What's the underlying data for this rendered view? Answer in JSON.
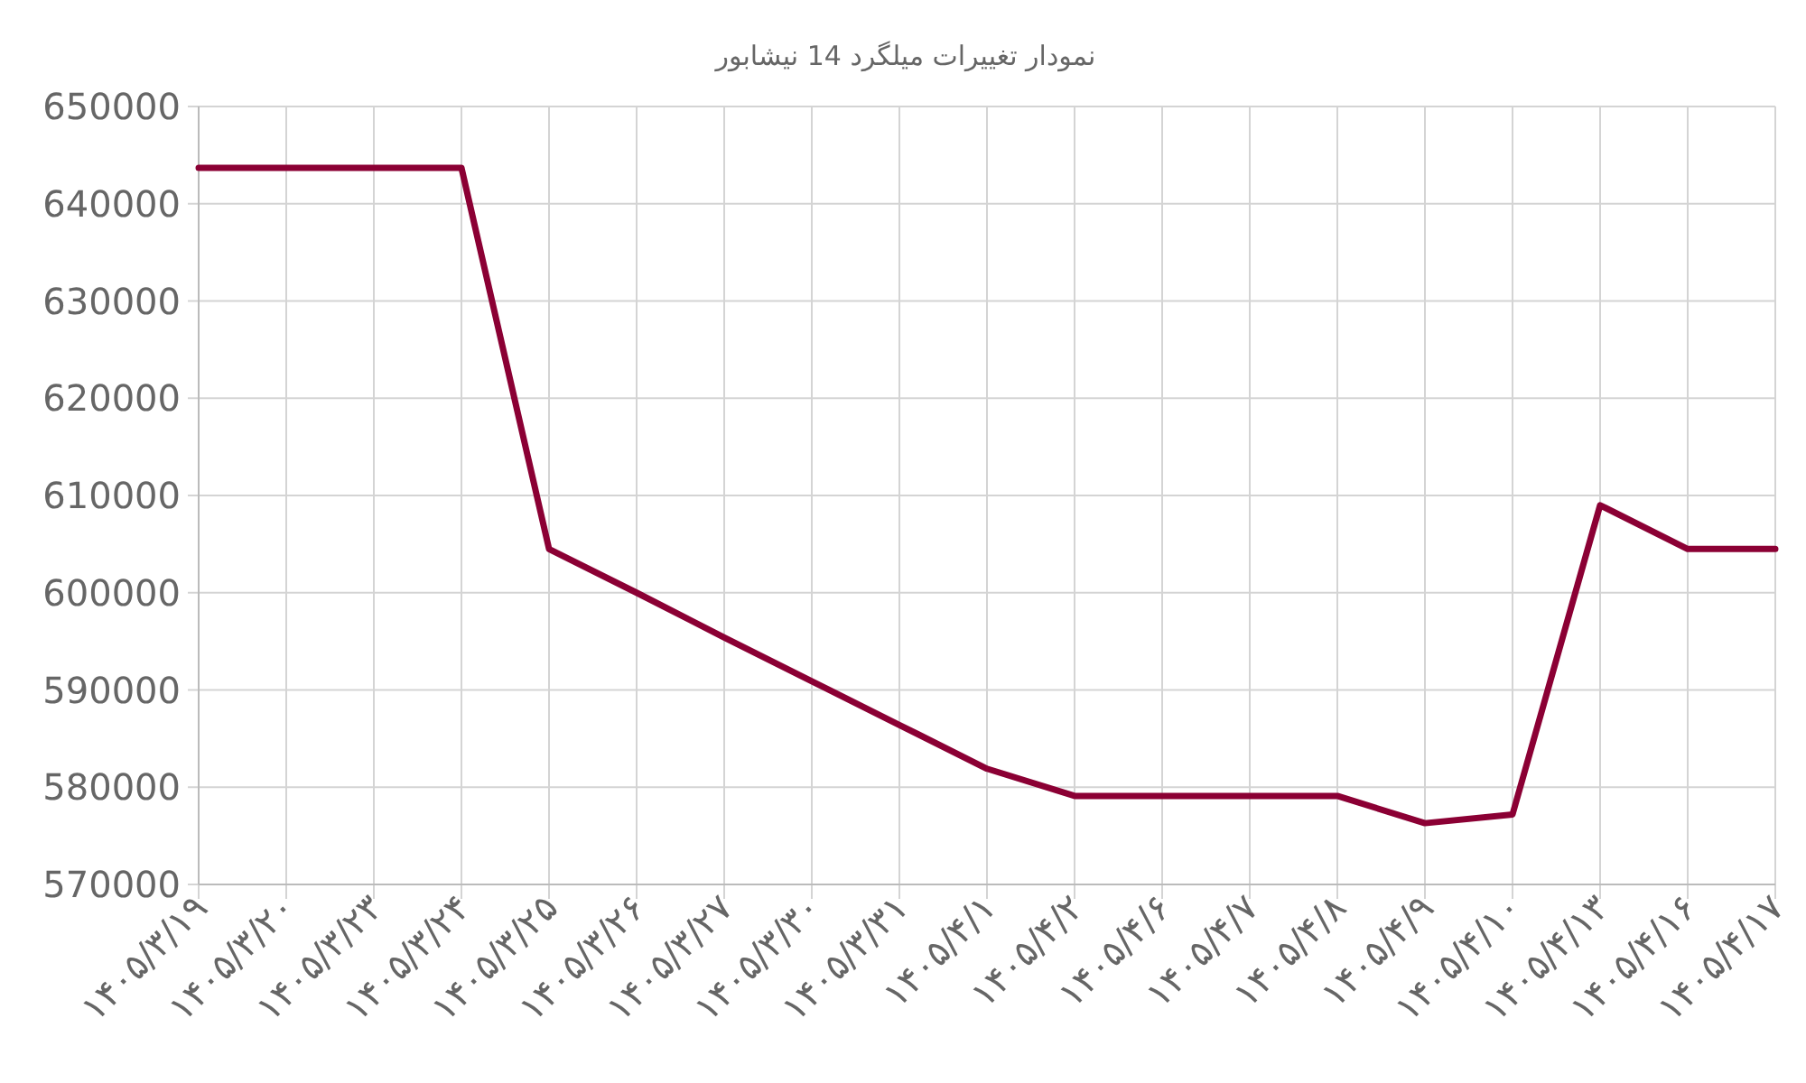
{
  "chart_data": {
    "type": "line",
    "title": "نمودار تغییرات میلگرد 14 نیشابور",
    "categories": [
      "۱۴۰۵/۳/۱۹",
      "۱۴۰۵/۳/۲۰",
      "۱۴۰۵/۳/۲۳",
      "۱۴۰۵/۳/۲۴",
      "۱۴۰۵/۳/۲۵",
      "۱۴۰۵/۳/۲۶",
      "۱۴۰۵/۳/۲۷",
      "۱۴۰۵/۳/۳۰",
      "۱۴۰۵/۳/۳۱",
      "۱۴۰۵/۴/۱",
      "۱۴۰۵/۴/۲",
      "۱۴۰۵/۴/۶",
      "۱۴۰۵/۴/۷",
      "۱۴۰۵/۴/۸",
      "۱۴۰۵/۴/۹",
      "۱۴۰۵/۴/۱۰",
      "۱۴۰۵/۴/۱۳",
      "۱۴۰۵/۴/۱۶",
      "۱۴۰۵/۴/۱۷"
    ],
    "series": [
      {
        "color": "#8b0034",
        "values": [
          643700,
          643700,
          643700,
          643700,
          604500,
          600000,
          595400,
          590900,
          586400,
          581900,
          579100,
          579100,
          579100,
          579100,
          576300,
          577200,
          609000,
          604500,
          604500
        ]
      }
    ],
    "ylim": [
      570000,
      650000
    ],
    "yticks": [
      570000,
      580000,
      590000,
      600000,
      610000,
      620000,
      630000,
      640000,
      650000
    ],
    "grid": true,
    "marker": "none",
    "line_style": "solid"
  }
}
